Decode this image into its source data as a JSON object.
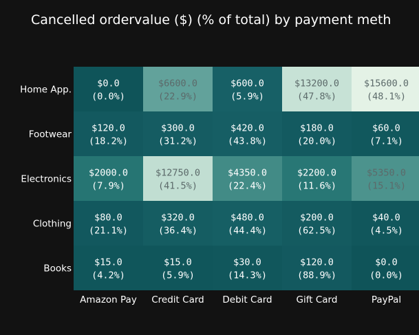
{
  "chart_data": {
    "type": "heatmap",
    "title": "Cancelled ordervalue ($) (% of total) by payment meth",
    "x_categories": [
      "Amazon Pay",
      "Credit Card",
      "Debit Card",
      "Gift Card",
      "PayPal"
    ],
    "y_categories": [
      "Home App.",
      "Footwear",
      "Electronics",
      "Clothing",
      "Books"
    ],
    "values": [
      [
        0.0,
        6600.0,
        600.0,
        13200.0,
        15600.0
      ],
      [
        120.0,
        300.0,
        420.0,
        180.0,
        60.0
      ],
      [
        2000.0,
        12750.0,
        4350.0,
        2200.0,
        5350.0
      ],
      [
        80.0,
        320.0,
        480.0,
        200.0,
        40.0
      ],
      [
        15.0,
        15.0,
        30.0,
        120.0,
        0.0
      ]
    ],
    "percent_of_total": [
      [
        0.0,
        22.9,
        5.9,
        47.8,
        48.1
      ],
      [
        18.2,
        31.2,
        43.8,
        20.0,
        7.1
      ],
      [
        7.9,
        41.5,
        22.4,
        11.6,
        15.1
      ],
      [
        21.1,
        36.4,
        44.4,
        62.5,
        4.5
      ],
      [
        4.2,
        5.9,
        14.3,
        88.9,
        0.0
      ]
    ],
    "colorscale": [
      "#0f5459",
      "#176066",
      "#2a7a77",
      "#4f958f",
      "#9bc9bd",
      "#e4f2e6"
    ],
    "xlabel": "",
    "ylabel": ""
  }
}
